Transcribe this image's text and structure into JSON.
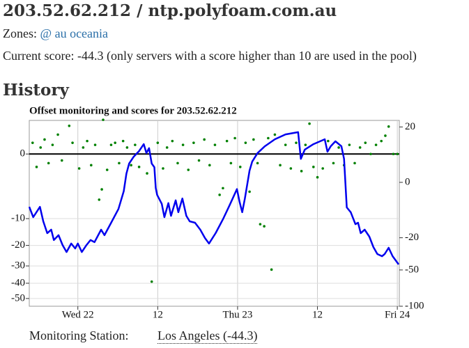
{
  "header": {
    "title": "203.52.62.212 / ntp.polyfoam.com.au"
  },
  "zones": {
    "label": "Zones:",
    "link": "@ au oceania"
  },
  "score_text": "Current score: -44.3 (only servers with a score higher than 10 are used in the pool)",
  "history_heading": "History",
  "chart_data": {
    "type": "line",
    "title": "Offset monitoring and scores for 203.52.62.212",
    "xlim": [
      -7.3,
      48.3
    ],
    "xticks": [
      {
        "value": 0,
        "label": "Wed 22"
      },
      12,
      {
        "value": 24,
        "label": "Thu 23"
      },
      {
        "value": 36,
        "label": "12"
      },
      {
        "value": 48,
        "label": "Fri 24"
      }
    ],
    "ylim": [
      -55.5,
      2.7
    ],
    "yticks": [
      0,
      -10,
      -20,
      -30,
      -40,
      -50
    ],
    "yscale": "sqrt",
    "y2lim": [
      -100,
      25
    ],
    "y2ticks": [
      20,
      0,
      -20,
      -50,
      -100
    ],
    "y2scale": "sqrt",
    "grid": true,
    "series": [
      {
        "type": "scatter",
        "color": "#008000",
        "x": [
          -6.8,
          -6.2,
          -5.6,
          -5.0,
          -4.4,
          -3.8,
          -3.0,
          -2.4,
          -1.3,
          -0.8,
          0.2,
          0.8,
          1.4,
          2.0,
          2.6,
          3.2,
          3.6,
          3.8,
          4.4,
          5.0,
          5.6,
          6.2,
          6.8,
          7.4,
          8.0,
          8.6,
          9.2,
          10.4,
          11.1,
          12.0,
          12.8,
          13.4,
          14.2,
          15.0,
          15.8,
          16.6,
          17.4,
          18.2,
          19.0,
          19.8,
          20.6,
          21.3,
          21.8,
          22.4,
          23.0,
          23.6,
          24.4,
          25.2,
          25.8,
          26.4,
          27.0,
          27.4,
          28.0,
          28.6,
          29.1,
          29.6,
          30.4,
          31.2,
          32.0,
          32.8,
          33.6,
          34.2,
          34.8,
          35.4,
          36.0,
          36.8,
          37.6,
          38.4,
          39.2,
          40.0,
          40.8,
          41.6,
          42.4,
          43.2,
          44.0,
          44.8,
          45.6,
          46.2,
          46.7,
          47.4,
          48.0
        ],
        "values": [
          0.3,
          -0.4,
          0.1,
          0.5,
          -0.2,
          0.2,
          0.9,
          -0.1,
          1.9,
          0.3,
          -0.5,
          0.1,
          0.4,
          -0.3,
          0.2,
          -5.0,
          -3.0,
          2.8,
          -0.6,
          0.2,
          0.3,
          -0.2,
          0.4,
          0.1,
          -0.3,
          0.2,
          -0.4,
          -0.9,
          -39,
          0.3,
          -0.5,
          0.1,
          0.4,
          -0.2,
          0.2,
          -0.6,
          0.3,
          -0.1,
          0.5,
          -0.3,
          0.2,
          -4.0,
          -2.8,
          0.4,
          -0.2,
          0.6,
          -0.4,
          0.3,
          -3.4,
          0.5,
          -0.2,
          -11.8,
          -12.5,
          0.6,
          -32,
          0.9,
          -0.3,
          0.2,
          -0.5,
          0.3,
          -0.7,
          0.2,
          2.2,
          -0.4,
          -1.3,
          -0.5,
          0.4,
          -0.2,
          0.1,
          -0.3,
          0.2,
          -0.2,
          0.1,
          0.3,
          0.0,
          0.2,
          0.4,
          0.8,
          1.8,
          0.0,
          0.0
        ]
      },
      {
        "type": "line",
        "color": "#0000ee",
        "axis": "y2",
        "x": [
          -7.3,
          -6.7,
          -5.7,
          -5.2,
          -4.6,
          -4.0,
          -3.6,
          -2.9,
          -2.3,
          -1.7,
          -1.0,
          -0.4,
          0,
          0.6,
          1.3,
          1.9,
          2.5,
          3.5,
          4.0,
          5.0,
          6.1,
          6.9,
          7.3,
          7.7,
          8.4,
          9.2,
          9.9,
          10.3,
          10.7,
          11.1,
          11.5,
          11.7,
          11.9,
          12.6,
          13.0,
          13.6,
          14.0,
          14.7,
          15.1,
          15.7,
          16.3,
          16.8,
          17.6,
          18.4,
          19.1,
          19.7,
          20.7,
          21.8,
          22.8,
          23.9,
          24.3,
          24.7,
          25.1,
          25.8,
          26.2,
          27.0,
          28.1,
          29.6,
          31.2,
          33.1,
          33.5,
          34.1,
          35.4,
          37.1,
          37.5,
          38.0,
          38.7,
          39.6,
          40.0,
          40.4,
          41.0,
          41.7,
          42.1,
          42.5,
          43.1,
          43.8,
          44.4,
          45.0,
          45.7,
          46.1,
          46.7,
          47.3,
          48.2
        ],
        "values": [
          -3.9,
          -7.9,
          -3.9,
          -9.9,
          -16.8,
          -14.6,
          -21.7,
          -18.2,
          -25.6,
          -31.6,
          -24.4,
          -28.5,
          -24.4,
          -31.6,
          -25.6,
          -21.7,
          -23.3,
          -14.6,
          -18.2,
          -10.6,
          -4.6,
          -0.5,
          0.5,
          2.3,
          4.3,
          6.4,
          9.5,
          5.6,
          7.6,
          2.3,
          1.5,
          -0.2,
          -1.0,
          -3.0,
          -7.9,
          -2.8,
          -7.3,
          -2.1,
          -5.8,
          -1.7,
          -7.3,
          -9.9,
          -10.6,
          -14.6,
          -20.2,
          -24.4,
          -16.8,
          -8.9,
          -3.4,
          -0.3,
          -2.5,
          -5.8,
          -1.7,
          0.9,
          2.8,
          5.6,
          8.5,
          12.1,
          15.0,
          16.4,
          3.6,
          7.0,
          9.5,
          12.1,
          6.1,
          8.5,
          11.0,
          8.5,
          3.6,
          -4.1,
          -5.8,
          -11.4,
          -10.6,
          -16.8,
          -14.6,
          -19.2,
          -27.3,
          -33.5,
          -35.5,
          -33.5,
          -27.9,
          -35.5,
          -43.9
        ]
      }
    ]
  },
  "station": {
    "label": "Monitoring Station:",
    "link": "Los Angeles (-44.3)"
  }
}
